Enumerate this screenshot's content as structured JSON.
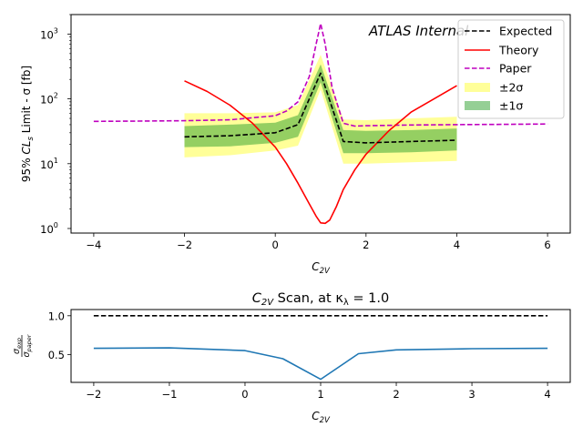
{
  "chart_data": [
    {
      "type": "line",
      "title": "",
      "annotation": "ATLAS Internal",
      "xlabel": "C",
      "xlabel_sub": "2V",
      "ylabel_prefix": "95% ",
      "ylabel_cl": "CL",
      "ylabel_cl_sub": "s",
      "ylabel_suffix": " Limit - σ [fb]",
      "yscale": "log",
      "xlim": [
        -4.5,
        6.5
      ],
      "ylim": [
        0.85,
        2000
      ],
      "xticks": [
        -4,
        -2,
        0,
        2,
        4,
        6
      ],
      "xtick_labels": [
        "−4",
        "−2",
        "0",
        "2",
        "4",
        "6"
      ],
      "yticks": [
        1,
        10,
        100,
        1000
      ],
      "ytick_bases": [
        "10",
        "10",
        "10",
        "10"
      ],
      "ytick_exps": [
        "0",
        "1",
        "2",
        "3"
      ],
      "legend": {
        "position": "top-right",
        "entries": [
          {
            "key": "expected",
            "label": "Expected"
          },
          {
            "key": "theory",
            "label": "Theory"
          },
          {
            "key": "paper",
            "label": "Paper"
          },
          {
            "key": "band2",
            "label": "±2σ"
          },
          {
            "key": "band1",
            "label": "±1σ"
          }
        ]
      },
      "colors": {
        "expected": "#000000",
        "theory": "#ff0000",
        "paper": "#bf00bf",
        "band2": "#ffff00",
        "band1": "#2ca02c"
      },
      "series": [
        {
          "key": "expected",
          "name": "Expected",
          "x": [
            -2,
            -1,
            0,
            0.5,
            1,
            1.5,
            2,
            3,
            4
          ],
          "y": [
            26,
            27,
            30,
            40,
            250,
            22,
            21,
            22,
            23
          ]
        },
        {
          "key": "paper",
          "name": "Paper",
          "x": [
            -4,
            -3,
            -2,
            -1,
            0,
            0.25,
            0.5,
            0.75,
            0.9,
            1.0,
            1.1,
            1.25,
            1.5,
            1.75,
            2,
            3,
            4,
            5,
            6
          ],
          "y": [
            45,
            45.5,
            46,
            47.5,
            55,
            65,
            90,
            220,
            700,
            1450,
            700,
            150,
            42,
            38,
            38.5,
            39.5,
            40,
            40.5,
            41
          ]
        },
        {
          "key": "theory",
          "name": "Theory",
          "x": [
            -2,
            -1.5,
            -1,
            -0.5,
            0,
            0.25,
            0.5,
            0.75,
            0.9,
            1.0,
            1.1,
            1.2,
            1.35,
            1.5,
            1.75,
            2,
            2.5,
            3,
            3.5,
            4
          ],
          "y": [
            190,
            130,
            80,
            42,
            18,
            10,
            5,
            2.4,
            1.55,
            1.22,
            1.2,
            1.35,
            2.2,
            4,
            8,
            14,
            32,
            63,
            100,
            160
          ]
        }
      ],
      "bands": [
        {
          "key": "band2",
          "name": "±2σ",
          "x": [
            -2,
            -1,
            0,
            0.5,
            1,
            1.5,
            2,
            3,
            4
          ],
          "low": [
            12.5,
            13.5,
            16,
            19,
            140,
            10,
            10,
            10.5,
            11
          ],
          "high": [
            60,
            60,
            62,
            80,
            480,
            48,
            47,
            50,
            53
          ]
        },
        {
          "key": "band1",
          "name": "±1σ",
          "x": [
            -2,
            -1,
            0,
            0.5,
            1,
            1.5,
            2,
            3,
            4
          ],
          "low": [
            18,
            18.5,
            21,
            26,
            180,
            14.5,
            14.5,
            15,
            16
          ],
          "high": [
            38,
            40,
            43,
            56,
            340,
            33,
            32,
            33,
            35
          ]
        }
      ]
    },
    {
      "type": "line",
      "title_prefix": "C",
      "title_prefix_sub": "2V",
      "title_mid": " Scan, at κ",
      "title_mid_sub": "λ",
      "title_suffix": " = 1.0",
      "xlabel": "C",
      "xlabel_sub": "2V",
      "ylabel_num_base": "σ",
      "ylabel_num_sub": "exp",
      "ylabel_den_base": "σ",
      "ylabel_den_sub": "paper",
      "xlim": [
        -2.3,
        4.3
      ],
      "ylim": [
        0.14,
        1.08
      ],
      "xticks": [
        -2,
        -1,
        0,
        1,
        2,
        3,
        4
      ],
      "xtick_labels": [
        "−2",
        "−1",
        "0",
        "1",
        "2",
        "3",
        "4"
      ],
      "yticks": [
        0.5,
        1.0
      ],
      "ytick_labels": [
        "0.5",
        "1.0"
      ],
      "colors": {
        "ratio": "#1f77b4",
        "reference": "#000000"
      },
      "series": [
        {
          "key": "ratio",
          "x": [
            -2,
            -1,
            0,
            0.5,
            1,
            1.5,
            2,
            3,
            4
          ],
          "y": [
            0.58,
            0.585,
            0.55,
            0.445,
            0.18,
            0.51,
            0.56,
            0.575,
            0.58
          ]
        },
        {
          "key": "reference",
          "x": [
            -2,
            4
          ],
          "y": [
            1.0,
            1.0
          ]
        }
      ]
    }
  ]
}
